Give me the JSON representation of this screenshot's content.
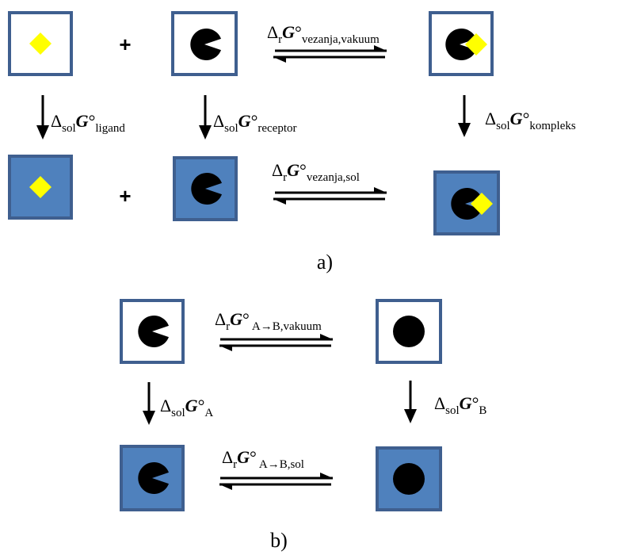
{
  "colors": {
    "box_border": "#3f5f8f",
    "solvent_fill": "#4f81bd",
    "vacuum_fill": "#ffffff",
    "ligand": "#ffff00",
    "shape": "#000000"
  },
  "panel_a": {
    "plus": "+",
    "top_arrow": {
      "delta": "Δ",
      "sub1": "r",
      "G": "G",
      "deg": "°",
      "sub2": "vezanja,vakuum"
    },
    "bottom_arrow": {
      "delta": "Δ",
      "sub1": "r",
      "G": "G",
      "deg": "°",
      "sub2": "vezanja,sol"
    },
    "down_ligand": {
      "delta": "Δ",
      "sub1": "sol",
      "G": "G",
      "deg": "°",
      "sub2": "ligand"
    },
    "down_receptor": {
      "delta": "Δ",
      "sub1": "sol",
      "G": "G",
      "deg": "°",
      "sub2": "receptor"
    },
    "down_complex": {
      "delta": "Δ",
      "sub1": "sol",
      "G": "G",
      "deg": "°",
      "sub2": "kompleks"
    },
    "caption": "a)"
  },
  "panel_b": {
    "top_arrow": {
      "delta": "Δ",
      "sub1": "r",
      "G": "G",
      "deg": "°",
      "sub2": "A→B,vakuum"
    },
    "bottom_arrow": {
      "delta": "Δ",
      "sub1": "r",
      "G": "G",
      "deg": "°",
      "sub2": "A→B,sol"
    },
    "down_A": {
      "delta": "Δ",
      "sub1": "sol",
      "G": "G",
      "deg": "°",
      "sub2": "A"
    },
    "down_B": {
      "delta": "Δ",
      "sub1": "sol",
      "G": "G",
      "deg": "°",
      "sub2": "B"
    },
    "caption": "b)"
  }
}
